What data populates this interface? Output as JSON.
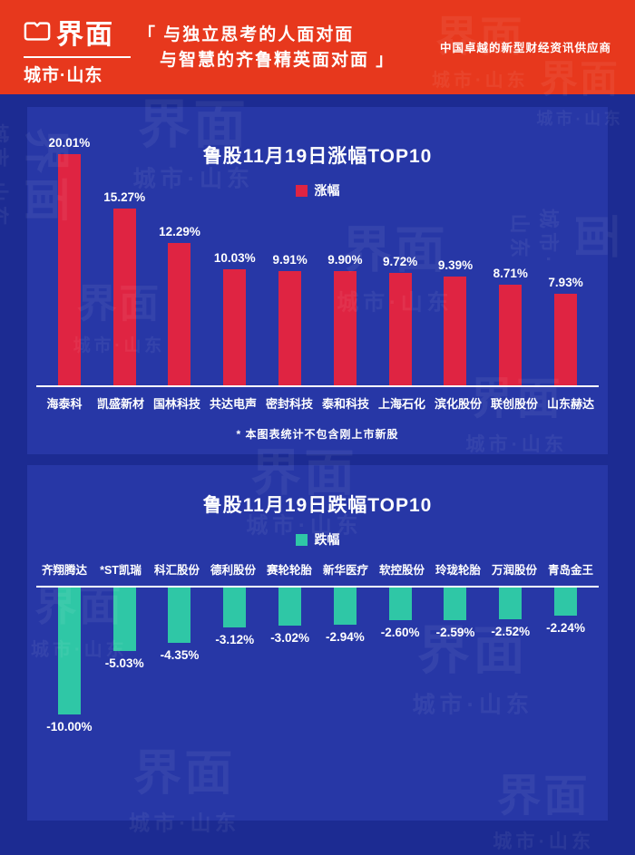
{
  "header": {
    "brand": "界面",
    "brand_sub": "城市·山东",
    "quote_line1": "「 与独立思考的人面对面",
    "quote_line2": "与智慧的齐鲁精英面对面 」",
    "tagline": "中国卓越的新型财经资讯供应商"
  },
  "watermark": {
    "brand": "界面",
    "sub": "城市·山东"
  },
  "colors": {
    "header_bg": "#e7381d",
    "page_bg": "#1c2b92",
    "card_bg": "#2737a6",
    "gain": "#df2442",
    "loss": "#2fc7a6"
  },
  "chart_data": [
    {
      "type": "bar",
      "title": "鲁股11月19日涨幅TOP10",
      "legend": "涨幅",
      "legend_position": "top",
      "grid": false,
      "bar_color": "#df2442",
      "categories": [
        "海泰科",
        "凯盛新材",
        "国林科技",
        "共达电声",
        "密封科技",
        "泰和科技",
        "上海石化",
        "滨化股份",
        "联创股份",
        "山东赫达"
      ],
      "values": [
        20.01,
        15.27,
        12.29,
        10.03,
        9.91,
        9.9,
        9.72,
        9.39,
        8.71,
        7.93
      ],
      "labels": [
        "20.01%",
        "15.27%",
        "12.29%",
        "10.03%",
        "9.91%",
        "9.90%",
        "9.72%",
        "9.39%",
        "8.71%",
        "7.93%"
      ],
      "ylim": [
        0,
        20.01
      ],
      "note": "* 本图表统计不包含刚上市新股"
    },
    {
      "type": "bar",
      "title": "鲁股11月19日跌幅TOP10",
      "legend": "跌幅",
      "legend_position": "top",
      "grid": false,
      "bar_color": "#2fc7a6",
      "categories": [
        "齐翔腾达",
        "*ST凯瑞",
        "科汇股份",
        "德利股份",
        "赛轮轮胎",
        "新华医疗",
        "软控股份",
        "玲珑轮胎",
        "万润股份",
        "青岛金王"
      ],
      "values": [
        -10.0,
        -5.03,
        -4.35,
        -3.12,
        -3.02,
        -2.94,
        -2.6,
        -2.59,
        -2.52,
        -2.24
      ],
      "labels": [
        "-10.00%",
        "-5.03%",
        "-4.35%",
        "-3.12%",
        "-3.02%",
        "-2.94%",
        "-2.60%",
        "-2.59%",
        "-2.52%",
        "-2.24%"
      ],
      "ylim": [
        -10.0,
        0
      ]
    }
  ]
}
